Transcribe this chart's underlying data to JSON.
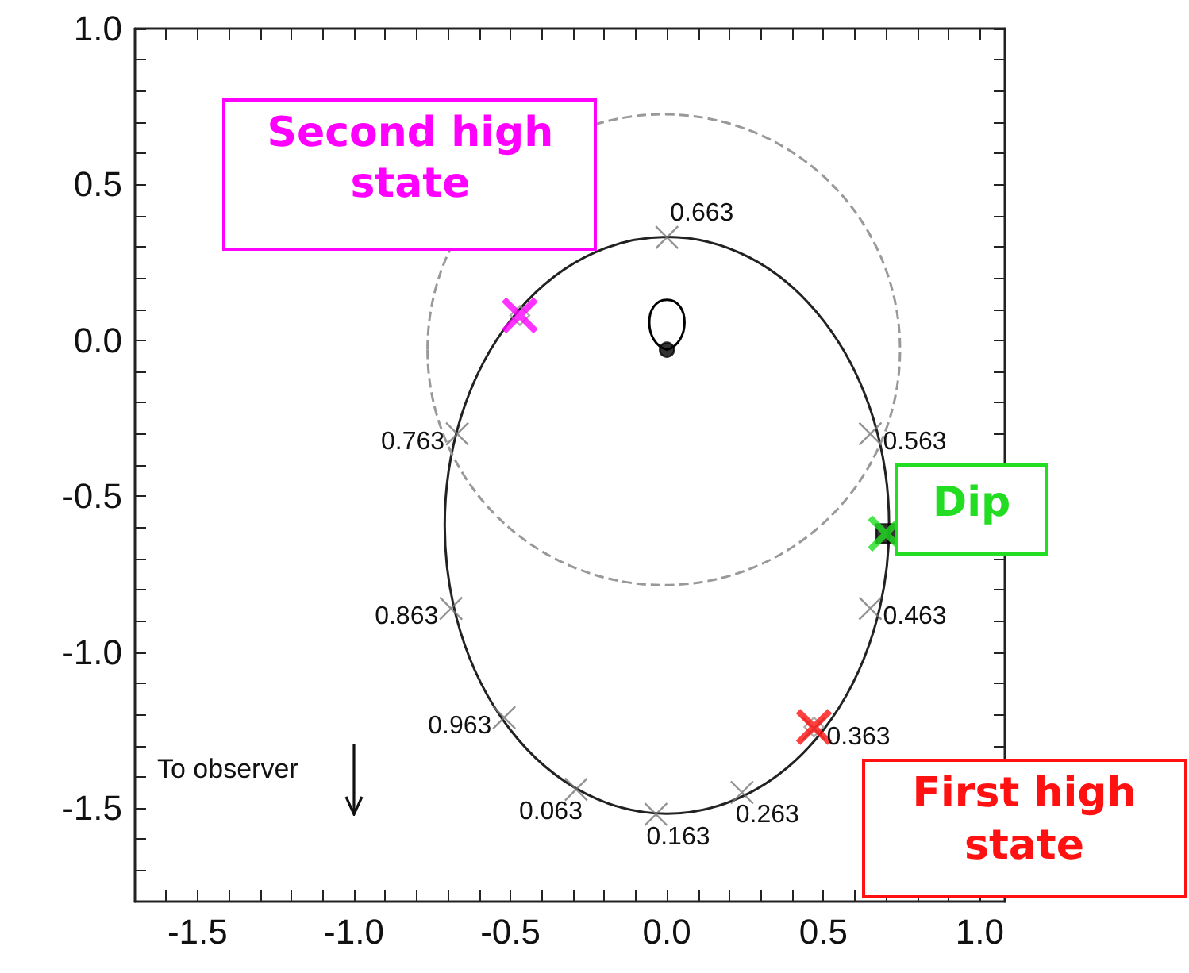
{
  "chart_data": {
    "type": "scatter",
    "xlim": [
      -1.7,
      1.08
    ],
    "ylim": [
      -1.8,
      1.0
    ],
    "xticks": [
      {
        "value": -1.6,
        "label": null
      },
      -1.5,
      {
        "value": -1.4,
        "label": null
      },
      {
        "value": -1.3,
        "label": null
      },
      {
        "value": -1.2,
        "label": null
      },
      {
        "value": -1.1,
        "label": null
      },
      {
        "value": -1.0,
        "label": "-1.0"
      },
      {
        "value": -0.9,
        "label": null
      },
      {
        "value": -0.8,
        "label": null
      },
      {
        "value": -0.7,
        "label": null
      },
      {
        "value": -0.6,
        "label": null
      },
      -0.5,
      {
        "value": -0.4,
        "label": null
      },
      {
        "value": -0.3,
        "label": null
      },
      {
        "value": -0.2,
        "label": null
      },
      {
        "value": -0.1,
        "label": null
      },
      {
        "value": 0,
        "label": "0.0"
      },
      {
        "value": 0.1,
        "label": null
      },
      {
        "value": 0.2,
        "label": null
      },
      {
        "value": 0.3,
        "label": null
      },
      {
        "value": 0.4,
        "label": null
      },
      0.5,
      {
        "value": 0.6,
        "label": null
      },
      {
        "value": 0.7,
        "label": null
      },
      {
        "value": 0.8,
        "label": null
      },
      {
        "value": 0.9,
        "label": null
      },
      {
        "value": 1.0,
        "label": "1.0"
      }
    ],
    "yticks": [
      {
        "value": -1.7,
        "label": null
      },
      {
        "value": -1.6,
        "label": null
      },
      -1.5,
      {
        "value": -1.4,
        "label": null
      },
      {
        "value": -1.3,
        "label": null
      },
      {
        "value": -1.2,
        "label": null
      },
      {
        "value": -1.1,
        "label": null
      },
      {
        "value": -1.0,
        "label": "-1.0"
      },
      {
        "value": -0.9,
        "label": null
      },
      {
        "value": -0.8,
        "label": null
      },
      {
        "value": -0.7,
        "label": null
      },
      {
        "value": -0.6,
        "label": null
      },
      -0.5,
      {
        "value": -0.4,
        "label": null
      },
      {
        "value": -0.3,
        "label": null
      },
      {
        "value": -0.2,
        "label": null
      },
      {
        "value": -0.1,
        "label": null
      },
      {
        "value": 0,
        "label": "0.0"
      },
      {
        "value": 0.1,
        "label": null
      },
      {
        "value": 0.2,
        "label": null
      },
      {
        "value": 0.3,
        "label": null
      },
      {
        "value": 0.4,
        "label": null
      },
      0.5,
      {
        "value": 0.6,
        "label": null
      },
      {
        "value": 0.7,
        "label": null
      },
      {
        "value": 0.8,
        "label": null
      },
      {
        "value": 0.9,
        "label": null
      },
      {
        "value": 1.0,
        "label": "1.0"
      }
    ],
    "grid": false,
    "series": [
      {
        "color": "#000000",
        "marker": "circle",
        "x": [
          0
        ],
        "values": [
          -0.03
        ]
      },
      {
        "color": "#777777",
        "marker": "cross",
        "x": [
          0,
          0.65,
          0.65,
          0.47,
          0.24,
          -0.035,
          -0.29,
          -0.52,
          -0.69,
          -0.67
        ],
        "values": [
          0.33,
          -0.3,
          -0.86,
          -1.245,
          -1.45,
          -1.52,
          -1.44,
          -1.21,
          -0.86,
          -0.3
        ]
      },
      {
        "color": "#999999",
        "marker": "diamond",
        "x": [
          -0.47,
          0.47
        ],
        "values": [
          0.08,
          -1.24
        ]
      },
      {
        "color": "#000000",
        "marker": "square",
        "x": [
          0.7
        ],
        "values": [
          -0.62
        ]
      },
      {
        "color": "#ff00ff",
        "marker": "cross",
        "x": [
          -0.47
        ],
        "values": [
          0.08
        ]
      },
      {
        "color": "#22dd22",
        "marker": "cross",
        "x": [
          0.7
        ],
        "values": [
          -0.62
        ]
      },
      {
        "color": "#ff1111",
        "marker": "cross",
        "x": [
          0.47
        ],
        "values": [
          -1.24
        ]
      }
    ],
    "annotations": [
      {
        "text": "Second high state",
        "x": -0.47,
        "y": 0.08
      },
      {
        "text": "Dip",
        "x": 0.7,
        "y": -0.62
      },
      {
        "text": "First high state",
        "x": 0.47,
        "y": -1.24
      },
      {
        "text": "0.663",
        "x": 0,
        "y": 0.33
      },
      {
        "text": "0.563",
        "x": 0.65,
        "y": -0.3
      },
      {
        "text": "0.463",
        "x": 0.65,
        "y": -0.86
      },
      {
        "text": "0.363",
        "x": 0.47,
        "y": -1.245
      },
      {
        "text": "0.263",
        "x": 0.24,
        "y": -1.45
      },
      {
        "text": "0.163",
        "x": -0.035,
        "y": -1.52
      },
      {
        "text": "0.063",
        "x": -0.29,
        "y": -1.44
      },
      {
        "text": "0.963",
        "x": -0.52,
        "y": -1.21
      },
      {
        "text": "0.863",
        "x": -0.69,
        "y": -0.86
      },
      {
        "text": "0.763",
        "x": -0.67,
        "y": -0.3
      },
      "To observer"
    ]
  }
}
